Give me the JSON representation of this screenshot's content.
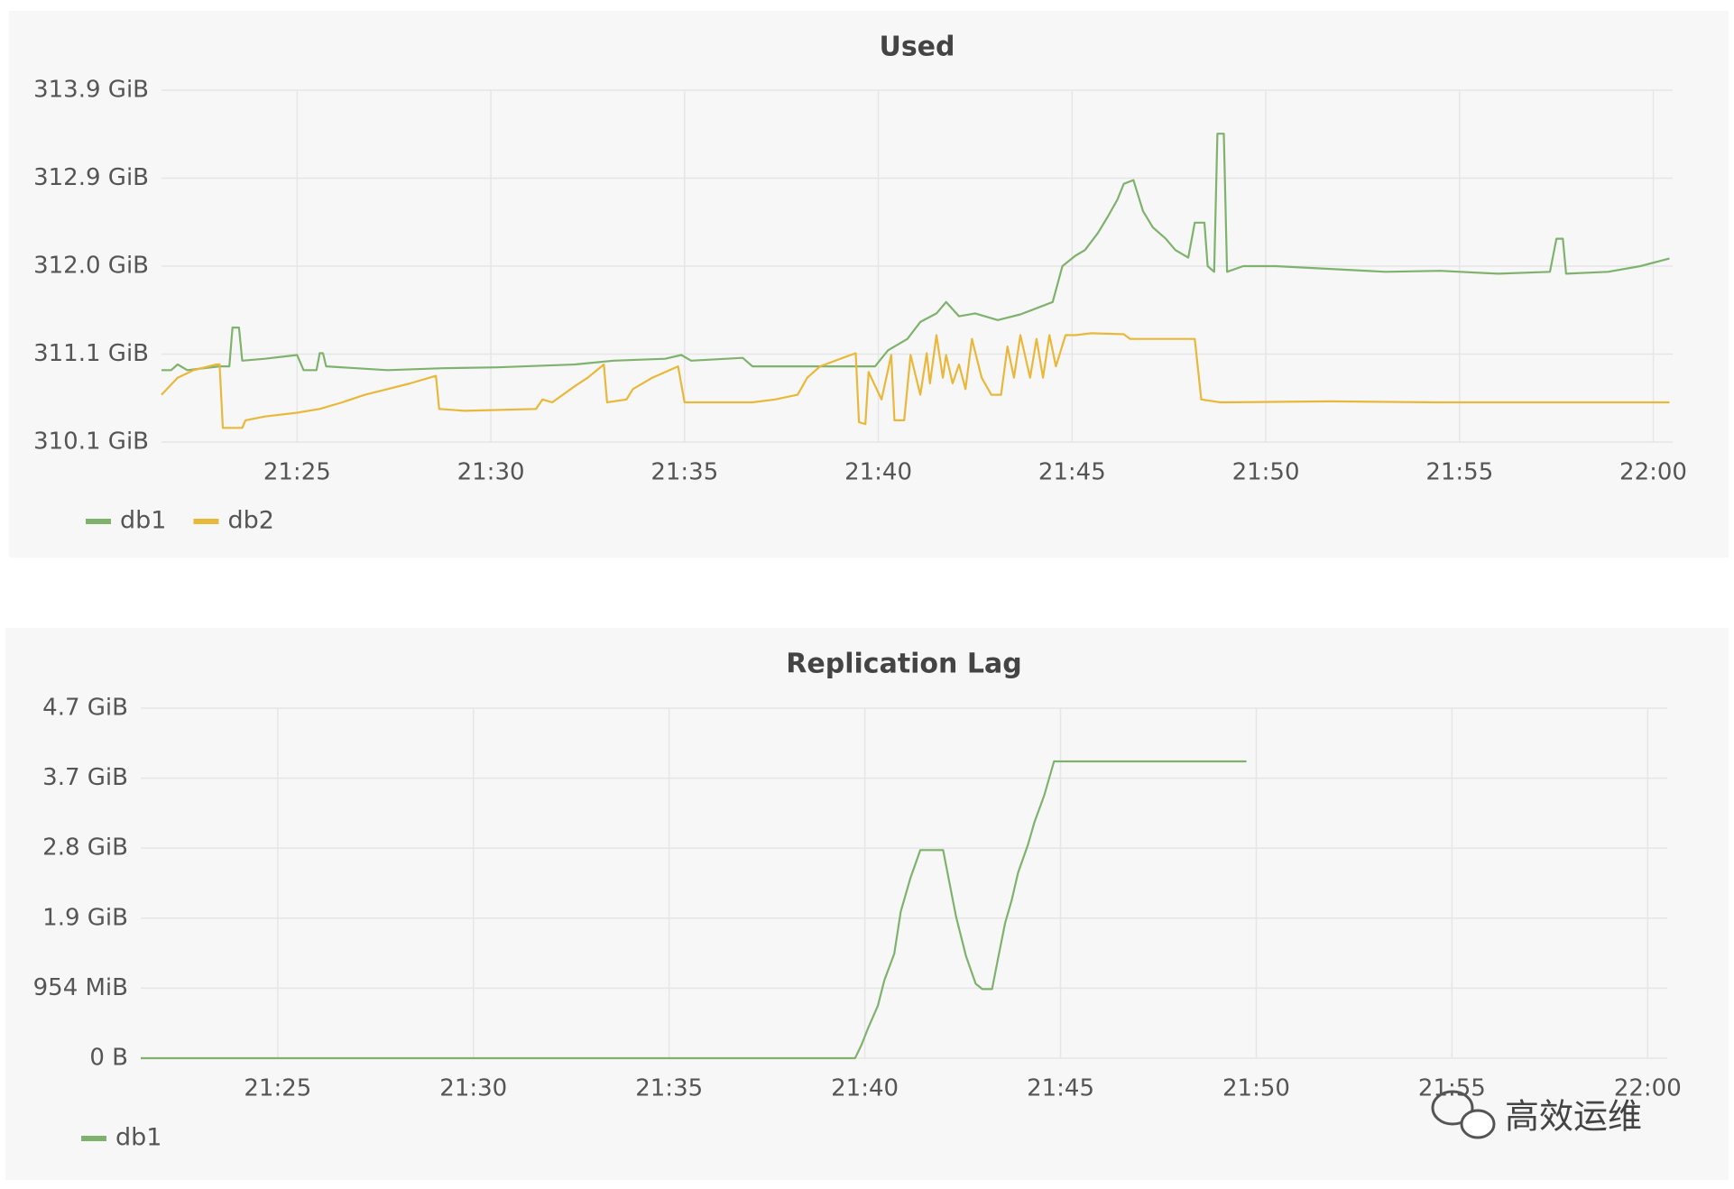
{
  "chart_data": [
    {
      "type": "line",
      "title": "Used",
      "grid": true,
      "legend": "bottom-left",
      "xlim": [
        "21:21:30",
        "22:00:30"
      ],
      "xticks": [
        "21:25",
        "21:30",
        "21:35",
        "21:40",
        "21:45",
        "21:50",
        "21:55",
        "22:00"
      ],
      "ylim": [
        310.14,
        313.86
      ],
      "yticks": [
        {
          "value": 310.14,
          "label": "310.1 GiB"
        },
        {
          "value": 311.07,
          "label": "311.1 GiB"
        },
        {
          "value": 312.0,
          "label": "312.0 GiB"
        },
        {
          "value": 312.93,
          "label": "312.9 GiB"
        },
        {
          "value": 313.86,
          "label": "313.9 GiB"
        }
      ],
      "series": [
        {
          "name": "db1",
          "color": "#7eb26d",
          "x": [
            "21:21:30",
            "21:21:45",
            "21:21:55",
            "21:22:10",
            "21:23:00",
            "21:23:15",
            "21:23:20",
            "21:23:30",
            "21:23:35",
            "21:24:10",
            "21:25:00",
            "21:25:10",
            "21:25:30",
            "21:25:35",
            "21:25:40",
            "21:25:45",
            "21:27:20",
            "21:28:45",
            "21:30:10",
            "21:32:10",
            "21:33:10",
            "21:34:30",
            "21:34:55",
            "21:35:10",
            "21:36:30",
            "21:36:45",
            "21:39:40",
            "21:39:55",
            "21:40:15",
            "21:40:45",
            "21:41:05",
            "21:41:30",
            "21:41:45",
            "21:42:05",
            "21:42:30",
            "21:43:05",
            "21:43:40",
            "21:44:30",
            "21:44:45",
            "21:45:05",
            "21:45:20",
            "21:45:40",
            "21:45:55",
            "21:46:10",
            "21:46:20",
            "21:46:35",
            "21:46:50",
            "21:47:05",
            "21:47:25",
            "21:47:40",
            "21:48:00",
            "21:48:10",
            "21:48:25",
            "21:48:30",
            "21:48:40",
            "21:48:45",
            "21:48:55",
            "21:49:00",
            "21:49:25",
            "21:50:15",
            "21:51:40",
            "21:53:05",
            "21:54:30",
            "21:56:00",
            "21:57:20",
            "21:57:30",
            "21:57:40",
            "21:57:45",
            "21:58:50",
            "21:59:40",
            "22:00:25"
          ],
          "values": [
            310.9,
            310.9,
            310.96,
            310.9,
            310.94,
            310.94,
            311.35,
            311.35,
            311.0,
            311.02,
            311.06,
            310.9,
            310.9,
            311.08,
            311.08,
            310.94,
            310.9,
            310.92,
            310.93,
            310.96,
            311.0,
            311.02,
            311.06,
            311.0,
            311.03,
            310.94,
            310.94,
            310.94,
            311.11,
            311.23,
            311.41,
            311.5,
            311.62,
            311.47,
            311.5,
            311.43,
            311.49,
            311.62,
            312.0,
            312.11,
            312.17,
            312.35,
            312.52,
            312.7,
            312.87,
            312.91,
            312.58,
            312.41,
            312.29,
            312.17,
            312.09,
            312.46,
            312.46,
            312.0,
            311.94,
            313.4,
            313.4,
            311.94,
            312.0,
            312.0,
            311.97,
            311.94,
            311.95,
            311.92,
            311.94,
            312.29,
            312.29,
            311.92,
            311.94,
            312.0,
            312.08
          ]
        },
        {
          "name": "db2",
          "color": "#eab839",
          "x": [
            "21:21:30",
            "21:21:55",
            "21:22:20",
            "21:22:55",
            "21:23:00",
            "21:23:05",
            "21:23:35",
            "21:23:40",
            "21:24:10",
            "21:25:00",
            "21:25:35",
            "21:26:10",
            "21:26:45",
            "21:27:20",
            "21:27:55",
            "21:28:35",
            "21:28:40",
            "21:29:20",
            "21:31:10",
            "21:31:20",
            "21:31:35",
            "21:32:10",
            "21:32:30",
            "21:32:55",
            "21:33:00",
            "21:33:30",
            "21:33:40",
            "21:34:10",
            "21:34:50",
            "21:35:00",
            "21:36:45",
            "21:37:20",
            "21:37:55",
            "21:38:10",
            "21:38:30",
            "21:39:05",
            "21:39:25",
            "21:39:30",
            "21:39:40",
            "21:39:45",
            "21:40:05",
            "21:40:20",
            "21:40:25",
            "21:40:40",
            "21:40:50",
            "21:41:05",
            "21:41:15",
            "21:41:20",
            "21:41:30",
            "21:41:40",
            "21:41:45",
            "21:41:55",
            "21:42:05",
            "21:42:15",
            "21:42:25",
            "21:42:40",
            "21:42:55",
            "21:43:10",
            "21:43:20",
            "21:43:30",
            "21:43:40",
            "21:43:55",
            "21:44:05",
            "21:44:15",
            "21:44:25",
            "21:44:35",
            "21:44:50",
            "21:45:05",
            "21:45:30",
            "21:46:20",
            "21:46:30",
            "21:48:10",
            "21:48:20",
            "21:48:50",
            "21:51:40",
            "21:54:30",
            "21:57:25",
            "22:00:25"
          ],
          "values": [
            310.64,
            310.82,
            310.9,
            310.96,
            310.96,
            310.29,
            310.29,
            310.37,
            310.41,
            310.45,
            310.49,
            310.56,
            310.64,
            310.7,
            310.76,
            310.84,
            310.49,
            310.47,
            310.49,
            310.59,
            310.56,
            310.73,
            310.82,
            310.96,
            310.56,
            310.59,
            310.7,
            310.82,
            310.94,
            310.56,
            310.56,
            310.59,
            310.64,
            310.82,
            310.94,
            311.03,
            311.08,
            310.35,
            310.33,
            310.88,
            310.59,
            311.06,
            310.37,
            310.37,
            311.06,
            310.64,
            311.08,
            310.76,
            311.27,
            310.82,
            311.06,
            310.76,
            310.96,
            310.7,
            311.23,
            310.82,
            310.64,
            310.64,
            311.15,
            310.82,
            311.27,
            310.82,
            311.23,
            310.82,
            311.27,
            310.94,
            311.27,
            311.27,
            311.29,
            311.28,
            311.23,
            311.23,
            310.59,
            310.56,
            310.57,
            310.56,
            310.56,
            310.56
          ]
        }
      ]
    },
    {
      "type": "line",
      "title": "Replication Lag",
      "grid": true,
      "legend": "bottom-left",
      "xlim": [
        "21:21:30",
        "22:00:30"
      ],
      "xticks": [
        "21:25",
        "21:30",
        "21:35",
        "21:40",
        "21:45",
        "21:50",
        "21:55",
        "22:00"
      ],
      "ylim": [
        0,
        4.658
      ],
      "yticks": [
        {
          "value": 0,
          "label": "0 B"
        },
        {
          "value": 0.9317,
          "label": "954 MiB"
        },
        {
          "value": 1.8634,
          "label": "1.9 GiB"
        },
        {
          "value": 2.795,
          "label": "2.8 GiB"
        },
        {
          "value": 3.7267,
          "label": "3.7 GiB"
        },
        {
          "value": 4.658,
          "label": "4.7 GiB"
        }
      ],
      "series": [
        {
          "name": "db1",
          "color": "#7eb26d",
          "x": [
            "21:21:30",
            "21:39:45",
            "21:39:55",
            "21:40:05",
            "21:40:20",
            "21:40:30",
            "21:40:45",
            "21:40:55",
            "21:41:10",
            "21:41:25",
            "21:41:35",
            "21:42:00",
            "21:42:10",
            "21:42:20",
            "21:42:35",
            "21:42:50",
            "21:43:00",
            "21:43:15",
            "21:43:25",
            "21:43:35",
            "21:43:45",
            "21:43:55",
            "21:44:10",
            "21:44:20",
            "21:44:35",
            "21:44:50",
            "21:49:45"
          ],
          "values": [
            0,
            0,
            0.18,
            0.4,
            0.7,
            1.04,
            1.39,
            1.95,
            2.4,
            2.77,
            2.77,
            2.77,
            2.32,
            1.88,
            1.36,
            0.99,
            0.92,
            0.92,
            1.36,
            1.8,
            2.1,
            2.47,
            2.84,
            3.14,
            3.5,
            3.95,
            3.95
          ]
        }
      ]
    }
  ],
  "watermark": "高效运维"
}
